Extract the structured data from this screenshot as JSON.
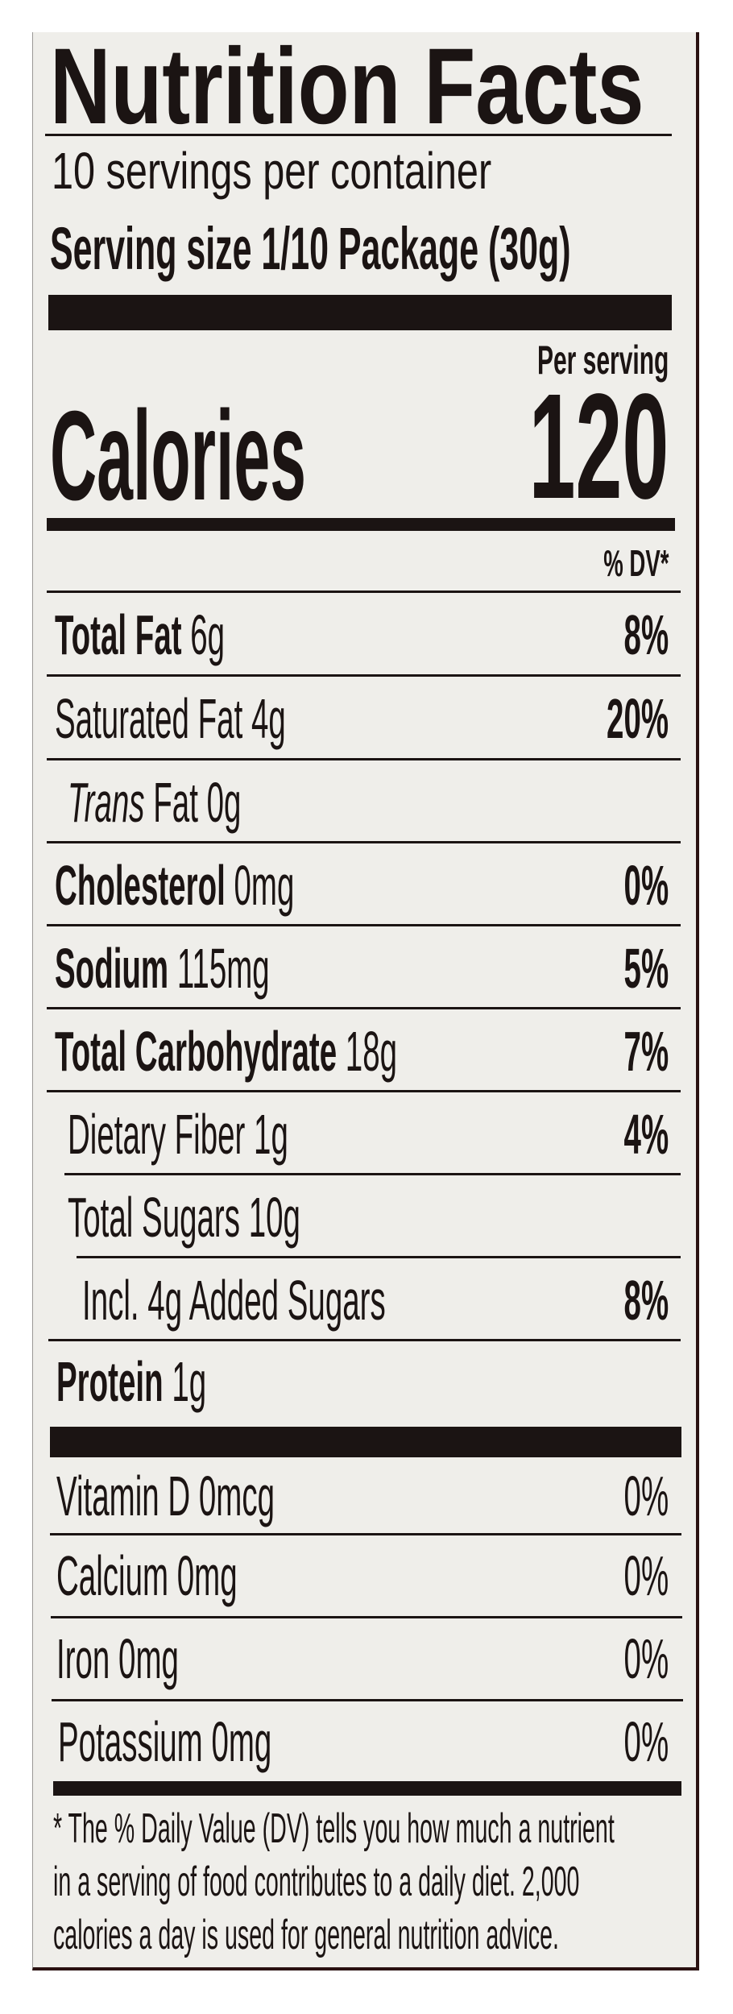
{
  "label": {
    "title": "Nutrition Facts",
    "servings_per_container": "10 servings per container",
    "serving_size_label": "Serving size",
    "serving_size_value": "1/10 Package (30g)",
    "per_serving": "Per serving",
    "calories_label": "Calories",
    "calories_value": "120",
    "dv_header": "% DV*",
    "nutrients": [
      {
        "name": "Total Fat",
        "amount": "6g",
        "dv": "8%"
      },
      {
        "name": "Saturated Fat",
        "amount": "4g",
        "dv": "20%"
      },
      {
        "name_italic": "Trans",
        "name": "Fat",
        "amount": "0g"
      },
      {
        "name": "Cholesterol",
        "amount": "0mg",
        "dv": "0%"
      },
      {
        "name": "Sodium",
        "amount": "115mg",
        "dv": "5%"
      },
      {
        "name": "Total Carbohydrate",
        "amount": "18g",
        "dv": "7%"
      },
      {
        "name": "Dietary Fiber",
        "amount": "1g",
        "dv": "4%"
      },
      {
        "name": "Total Sugars",
        "amount": "10g"
      },
      {
        "name": "Incl. 4g Added Sugars",
        "dv": "8%"
      },
      {
        "name": "Protein",
        "amount": "1g"
      }
    ],
    "vitamins": [
      {
        "name": "Vitamin D",
        "amount": "0mcg",
        "dv": "0%"
      },
      {
        "name": "Calcium",
        "amount": "0mg",
        "dv": "0%"
      },
      {
        "name": "Iron",
        "amount": "0mg",
        "dv": "0%"
      },
      {
        "name": "Potassium",
        "amount": "0mg",
        "dv": "0%"
      }
    ],
    "footnote": [
      "* The % Daily Value (DV) tells you how much a nutrient",
      "in a serving of food contributes to a daily diet. 2,000",
      "calories a day is used for general nutrition advice."
    ]
  },
  "colors": {
    "ink": "#1b1413",
    "background": "#efeeea",
    "border": "#2a1212"
  }
}
